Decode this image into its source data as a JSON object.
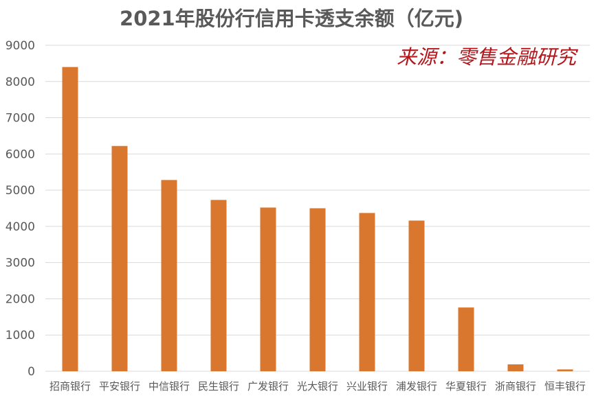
{
  "chart_data": {
    "type": "bar",
    "title": "2021年股份行信用卡透支余额（亿元)",
    "source_note": "来源：零售金融研究",
    "categories": [
      "招商银行",
      "平安银行",
      "中信银行",
      "民生银行",
      "广发银行",
      "光大银行",
      "兴业银行",
      "浦发银行",
      "华夏银行",
      "浙商银行",
      "恒丰银行"
    ],
    "values": [
      8400,
      6220,
      5280,
      4730,
      4520,
      4500,
      4370,
      4160,
      1760,
      190,
      50
    ],
    "ylim": [
      0,
      9000
    ],
    "yticks": [
      0,
      1000,
      2000,
      3000,
      4000,
      5000,
      6000,
      7000,
      8000,
      9000
    ],
    "grid": true,
    "legend": "none",
    "xlabel": "",
    "ylabel": "",
    "bar_color": "#d9772f"
  }
}
